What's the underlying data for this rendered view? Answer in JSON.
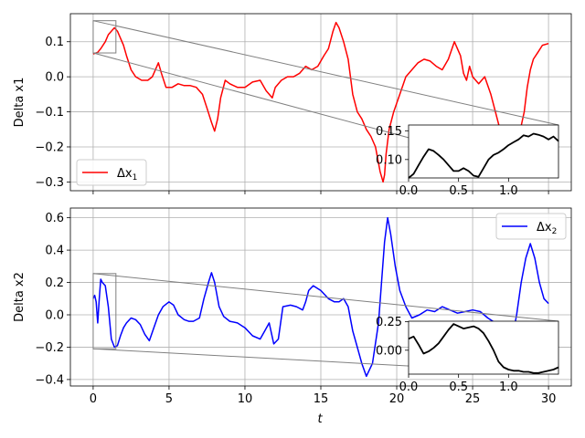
{
  "chart_data": [
    {
      "type": "line",
      "ylabel": "Delta x1",
      "xlim": [
        -1.5,
        31.5
      ],
      "ylim": [
        -0.325,
        0.18
      ],
      "x_ticks": [
        "0",
        "5",
        "10",
        "15",
        "20",
        "25",
        "30"
      ],
      "y_ticks": [
        "−0.3",
        "−0.2",
        "−0.1",
        "0.0",
        "0.1"
      ],
      "grid": true,
      "legend": {
        "position": "lower-left",
        "label_main": "Δx",
        "label_sub": "1"
      },
      "series": [
        {
          "name": "Δx1",
          "color": "#ff0000",
          "x": [
            0,
            0.3,
            0.5,
            0.8,
            1.0,
            1.2,
            1.4,
            1.6,
            2.0,
            2.2,
            2.5,
            2.8,
            3.2,
            3.6,
            3.9,
            4.1,
            4.3,
            4.5,
            4.8,
            5.2,
            5.6,
            6.0,
            6.4,
            6.8,
            7.2,
            7.5,
            7.8,
            8.0,
            8.2,
            8.4,
            8.7,
            9.0,
            9.5,
            10.0,
            10.5,
            11.0,
            11.4,
            11.8,
            12.0,
            12.4,
            12.8,
            13.2,
            13.6,
            14.0,
            14.4,
            14.8,
            15.2,
            15.5,
            15.8,
            16.0,
            16.2,
            16.5,
            16.8,
            17.1,
            17.4,
            17.7,
            18.0,
            18.3,
            18.6,
            18.9,
            19.1,
            19.2,
            19.3,
            19.5,
            19.8,
            20.2,
            20.6,
            21.0,
            21.4,
            21.8,
            22.2,
            22.6,
            23.0,
            23.4,
            23.8,
            24.2,
            24.4,
            24.6,
            24.8,
            25.0,
            25.4,
            25.8,
            26.2,
            26.5,
            26.8,
            27.0,
            27.3,
            27.6,
            27.9,
            28.2,
            28.4,
            28.6,
            28.8,
            29.0,
            29.3,
            29.6,
            30.0
          ],
          "y": [
            0.065,
            0.07,
            0.08,
            0.1,
            0.12,
            0.13,
            0.14,
            0.13,
            0.09,
            0.06,
            0.02,
            0.0,
            -0.01,
            -0.01,
            0.0,
            0.02,
            0.04,
            0.01,
            -0.03,
            -0.03,
            -0.02,
            -0.025,
            -0.025,
            -0.03,
            -0.05,
            -0.09,
            -0.13,
            -0.155,
            -0.12,
            -0.06,
            -0.01,
            -0.02,
            -0.03,
            -0.03,
            -0.015,
            -0.01,
            -0.04,
            -0.06,
            -0.03,
            -0.01,
            0.0,
            0.0,
            0.01,
            0.03,
            0.02,
            0.03,
            0.06,
            0.08,
            0.13,
            0.155,
            0.14,
            0.1,
            0.05,
            -0.05,
            -0.1,
            -0.12,
            -0.15,
            -0.17,
            -0.2,
            -0.27,
            -0.3,
            -0.28,
            -0.22,
            -0.15,
            -0.1,
            -0.05,
            0.0,
            0.02,
            0.04,
            0.05,
            0.045,
            0.03,
            0.02,
            0.05,
            0.1,
            0.06,
            0.01,
            -0.01,
            0.03,
            0.0,
            -0.02,
            0.0,
            -0.05,
            -0.1,
            -0.15,
            -0.2,
            -0.25,
            -0.22,
            -0.18,
            -0.14,
            -0.1,
            -0.03,
            0.02,
            0.05,
            0.07,
            0.09,
            0.095
          ]
        }
      ],
      "zoom_box": {
        "x": [
          0,
          1.5
        ],
        "y": [
          0.068,
          0.16
        ]
      },
      "inset": {
        "xlim": [
          0,
          1.5
        ],
        "ylim": [
          0.068,
          0.16
        ],
        "x_ticks": [
          "0.0",
          "0.5",
          "1.0"
        ],
        "y_ticks": [
          "0.10",
          "0.15"
        ],
        "x": [
          0,
          0.05,
          0.1,
          0.15,
          0.2,
          0.25,
          0.3,
          0.35,
          0.4,
          0.45,
          0.5,
          0.55,
          0.6,
          0.65,
          0.7,
          0.75,
          0.8,
          0.85,
          0.9,
          0.95,
          1.0,
          1.05,
          1.1,
          1.15,
          1.2,
          1.25,
          1.3,
          1.35,
          1.4,
          1.45,
          1.5
        ],
        "y": [
          0.068,
          0.075,
          0.09,
          0.105,
          0.118,
          0.115,
          0.108,
          0.1,
          0.09,
          0.08,
          0.08,
          0.085,
          0.08,
          0.072,
          0.07,
          0.085,
          0.1,
          0.108,
          0.112,
          0.118,
          0.125,
          0.13,
          0.135,
          0.142,
          0.14,
          0.145,
          0.143,
          0.14,
          0.135,
          0.14,
          0.132
        ]
      }
    },
    {
      "type": "line",
      "ylabel": "Delta x2",
      "xlabel": "t",
      "xlim": [
        -1.5,
        31.5
      ],
      "ylim": [
        -0.44,
        0.66
      ],
      "x_ticks": [
        "0",
        "5",
        "10",
        "15",
        "20",
        "25",
        "30"
      ],
      "y_ticks": [
        "−0.4",
        "−0.2",
        "0.0",
        "0.2",
        "0.4",
        "0.6"
      ],
      "grid": true,
      "legend": {
        "position": "upper-right",
        "label_main": "Δx",
        "label_sub": "2"
      },
      "series": [
        {
          "name": "Δx2",
          "color": "#0000ff",
          "x": [
            0,
            0.1,
            0.2,
            0.3,
            0.4,
            0.5,
            0.6,
            0.8,
            1.0,
            1.2,
            1.4,
            1.6,
            1.8,
            2.0,
            2.2,
            2.5,
            2.8,
            3.1,
            3.4,
            3.7,
            4.0,
            4.3,
            4.6,
            5.0,
            5.3,
            5.6,
            6.0,
            6.3,
            6.6,
            7.0,
            7.3,
            7.6,
            7.8,
            8.0,
            8.3,
            8.6,
            9.0,
            9.5,
            10.0,
            10.5,
            11.0,
            11.3,
            11.6,
            11.9,
            12.2,
            12.5,
            13.0,
            13.4,
            13.8,
            14.0,
            14.2,
            14.5,
            15.0,
            15.5,
            15.9,
            16.2,
            16.5,
            16.8,
            17.1,
            17.4,
            17.7,
            18.0,
            18.4,
            18.8,
            19.0,
            19.2,
            19.4,
            19.6,
            19.9,
            20.2,
            20.6,
            21.0,
            21.5,
            22.0,
            22.5,
            23.0,
            23.5,
            24.0,
            24.5,
            25.0,
            25.5,
            26.0,
            26.5,
            27.0,
            27.3,
            27.6,
            27.9,
            28.2,
            28.5,
            28.8,
            29.1,
            29.4,
            29.7,
            30.0
          ],
          "y": [
            0.1,
            0.12,
            0.08,
            -0.05,
            0.1,
            0.22,
            0.2,
            0.18,
            0.05,
            -0.15,
            -0.2,
            -0.19,
            -0.13,
            -0.08,
            -0.05,
            -0.02,
            -0.03,
            -0.06,
            -0.12,
            -0.16,
            -0.08,
            0.0,
            0.05,
            0.08,
            0.06,
            0.0,
            -0.03,
            -0.04,
            -0.04,
            -0.02,
            0.1,
            0.2,
            0.26,
            0.2,
            0.05,
            -0.01,
            -0.04,
            -0.05,
            -0.08,
            -0.13,
            -0.15,
            -0.1,
            -0.05,
            -0.18,
            -0.15,
            0.05,
            0.06,
            0.05,
            0.03,
            0.08,
            0.15,
            0.18,
            0.15,
            0.1,
            0.08,
            0.08,
            0.1,
            0.05,
            -0.1,
            -0.2,
            -0.3,
            -0.38,
            -0.3,
            -0.05,
            0.2,
            0.45,
            0.6,
            0.5,
            0.3,
            0.15,
            0.05,
            -0.02,
            0.0,
            0.03,
            0.02,
            0.05,
            0.03,
            0.01,
            0.02,
            0.03,
            0.02,
            -0.02,
            -0.05,
            -0.1,
            -0.2,
            -0.15,
            0.0,
            0.2,
            0.35,
            0.44,
            0.35,
            0.2,
            0.1,
            0.07
          ]
        }
      ],
      "zoom_box": {
        "x": [
          0,
          1.5
        ],
        "y": [
          -0.21,
          0.255
        ]
      },
      "inset": {
        "xlim": [
          0,
          1.5
        ],
        "ylim": [
          -0.21,
          0.255
        ],
        "x_ticks": [
          "0.0",
          "0.5",
          "1.0"
        ],
        "y_ticks": [
          "0.00",
          "0.25"
        ],
        "x": [
          0,
          0.05,
          0.1,
          0.15,
          0.2,
          0.25,
          0.3,
          0.35,
          0.4,
          0.45,
          0.5,
          0.55,
          0.6,
          0.65,
          0.7,
          0.75,
          0.8,
          0.85,
          0.9,
          0.95,
          1.0,
          1.05,
          1.1,
          1.15,
          1.2,
          1.25,
          1.3,
          1.35,
          1.4,
          1.45,
          1.5
        ],
        "y": [
          0.1,
          0.12,
          0.05,
          -0.03,
          -0.01,
          0.02,
          0.06,
          0.12,
          0.18,
          0.23,
          0.21,
          0.19,
          0.2,
          0.21,
          0.19,
          0.15,
          0.08,
          0.0,
          -0.1,
          -0.15,
          -0.17,
          -0.18,
          -0.18,
          -0.19,
          -0.19,
          -0.2,
          -0.2,
          -0.19,
          -0.18,
          -0.17,
          -0.15
        ]
      }
    }
  ]
}
